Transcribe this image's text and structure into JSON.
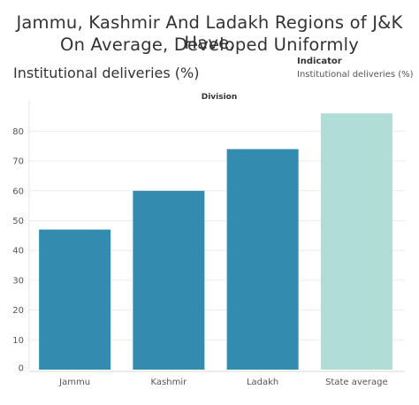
{
  "title_line1": "Jammu, Kashmir And Ladakh Regions of J&K Have,",
  "title_line2": "On Average, Developed Uniformly",
  "subtitle": "Institutional deliveries (%)",
  "legend": {
    "title": "Indicator",
    "item": "Institutional deliveries (%)"
  },
  "chart_data": {
    "type": "bar",
    "header": "Division",
    "categories": [
      "Jammu",
      "Kashmir",
      "Ladakh",
      "State average"
    ],
    "values": [
      47,
      60,
      74,
      86
    ],
    "colors": [
      "#338bb0",
      "#338bb0",
      "#338bb0",
      "#b0ddd8"
    ],
    "ylim": [
      0,
      90
    ],
    "yticks": [
      0,
      10,
      20,
      30,
      40,
      50,
      60,
      70,
      80
    ],
    "ytick_labels": [
      "0",
      "10",
      "20",
      "30",
      "40",
      "50",
      "60",
      "70",
      "80"
    ],
    "grid": true
  }
}
